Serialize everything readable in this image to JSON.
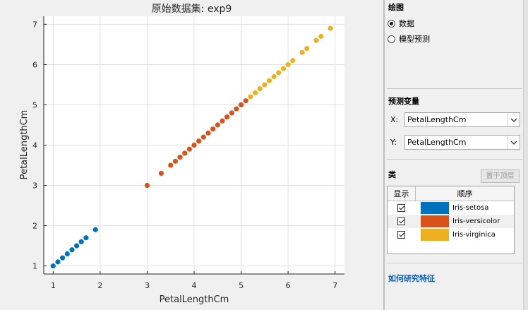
{
  "plot": {
    "title": "原始数据集: exp9",
    "xlabel": "PetalLengthCm",
    "ylabel": "PetalLengthCm"
  },
  "chart_data": {
    "type": "scatter",
    "title": "原始数据集: exp9",
    "xlabel": "PetalLengthCm",
    "ylabel": "PetalLengthCm",
    "xlim": [
      0.8,
      7.2
    ],
    "ylim": [
      0.8,
      7.2
    ],
    "xticks": [
      "1",
      "2",
      "3",
      "4",
      "5",
      "6",
      "7"
    ],
    "yticks": [
      "1",
      "2",
      "3",
      "4",
      "5",
      "6",
      "7"
    ],
    "grid": true,
    "series": [
      {
        "name": "Iris-setosa",
        "color": "#0072bd",
        "x": [
          1.0,
          1.1,
          1.2,
          1.3,
          1.4,
          1.5,
          1.6,
          1.7,
          1.9
        ],
        "y": [
          1.0,
          1.1,
          1.2,
          1.3,
          1.4,
          1.5,
          1.6,
          1.7,
          1.9
        ]
      },
      {
        "name": "Iris-versicolor",
        "color": "#d95319",
        "x": [
          3.0,
          3.3,
          3.5,
          3.6,
          3.7,
          3.8,
          3.9,
          4.0,
          4.1,
          4.2,
          4.3,
          4.4,
          4.5,
          4.6,
          4.7,
          4.8,
          4.9,
          5.0,
          5.1
        ],
        "y": [
          3.0,
          3.3,
          3.5,
          3.6,
          3.7,
          3.8,
          3.9,
          4.0,
          4.1,
          4.2,
          4.3,
          4.4,
          4.5,
          4.6,
          4.7,
          4.8,
          4.9,
          5.0,
          5.1
        ]
      },
      {
        "name": "Iris-virginica",
        "color": "#edb120",
        "x": [
          5.2,
          5.3,
          5.4,
          5.5,
          5.6,
          5.7,
          5.8,
          5.9,
          6.0,
          6.1,
          6.3,
          6.4,
          6.6,
          6.7,
          6.9
        ],
        "y": [
          5.2,
          5.3,
          5.4,
          5.5,
          5.6,
          5.7,
          5.8,
          5.9,
          6.0,
          6.1,
          6.3,
          6.4,
          6.6,
          6.7,
          6.9
        ]
      }
    ]
  },
  "panel": {
    "plot_section_title": "绘图",
    "radio_data_label": "数据",
    "radio_model_label": "模型预测",
    "radio_selected": "数据",
    "predictors_title": "预测变量",
    "x_label": "X:",
    "x_value": "PetalLengthCm",
    "y_label": "Y:",
    "y_value": "PetalLengthCm",
    "classes_title": "类",
    "top_button": "置于顶层",
    "table": {
      "col_show": "显示",
      "col_order": "顺序",
      "rows": [
        {
          "name": "Iris-setosa",
          "color": "#0072bd",
          "checked": true
        },
        {
          "name": "Iris-versicolor",
          "color": "#d95319",
          "checked": true
        },
        {
          "name": "Iris-virginica",
          "color": "#edb120",
          "checked": true
        }
      ]
    },
    "help_link": "如何研究特征"
  }
}
